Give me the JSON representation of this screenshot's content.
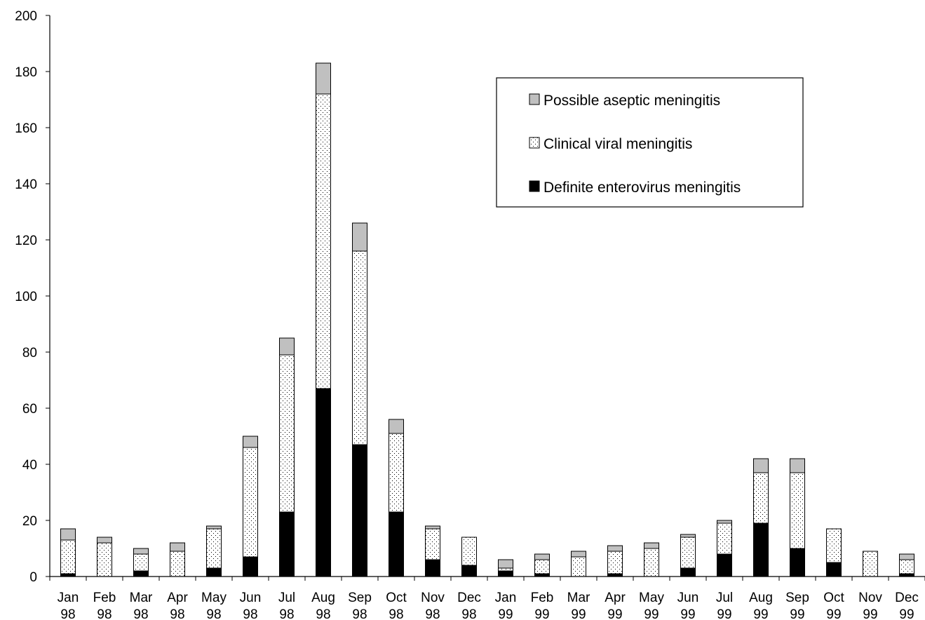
{
  "chart_data": {
    "type": "bar",
    "stacked": true,
    "categories": [
      [
        "Jan",
        "98"
      ],
      [
        "Feb",
        "98"
      ],
      [
        "Mar",
        "98"
      ],
      [
        "Apr",
        "98"
      ],
      [
        "May",
        "98"
      ],
      [
        "Jun",
        "98"
      ],
      [
        "Jul",
        "98"
      ],
      [
        "Aug",
        "98"
      ],
      [
        "Sep",
        "98"
      ],
      [
        "Oct",
        "98"
      ],
      [
        "Nov",
        "98"
      ],
      [
        "Dec",
        "98"
      ],
      [
        "Jan",
        "99"
      ],
      [
        "Feb",
        "99"
      ],
      [
        "Mar",
        "99"
      ],
      [
        "Apr",
        "99"
      ],
      [
        "May",
        "99"
      ],
      [
        "Jun",
        "99"
      ],
      [
        "Jul",
        "99"
      ],
      [
        "Aug",
        "99"
      ],
      [
        "Sep",
        "99"
      ],
      [
        "Oct",
        "99"
      ],
      [
        "Nov",
        "99"
      ],
      [
        "Dec",
        "99"
      ]
    ],
    "series": [
      {
        "name": "Definite enterovirus meningitis",
        "fill": "solid-black",
        "values": [
          1,
          0,
          2,
          0,
          3,
          7,
          23,
          67,
          47,
          23,
          6,
          4,
          2,
          1,
          0,
          1,
          0,
          3,
          8,
          19,
          10,
          5,
          0,
          1
        ]
      },
      {
        "name": "Clinical viral meningitis",
        "fill": "dotted-white",
        "values": [
          12,
          12,
          6,
          9,
          14,
          39,
          56,
          105,
          69,
          28,
          11,
          10,
          1,
          5,
          7,
          8,
          10,
          11,
          11,
          18,
          27,
          12,
          9,
          5
        ]
      },
      {
        "name": "Possible aseptic meningitis",
        "fill": "light-gray",
        "values": [
          4,
          2,
          2,
          3,
          1,
          4,
          6,
          11,
          10,
          5,
          1,
          0,
          3,
          2,
          2,
          2,
          2,
          1,
          1,
          5,
          5,
          0,
          0,
          2
        ]
      }
    ],
    "y_ticks": [
      "0",
      "20",
      "40",
      "60",
      "80",
      "100",
      "120",
      "140",
      "160",
      "180",
      "200"
    ],
    "ylim": [
      0,
      200
    ],
    "title": "",
    "xlabel": "",
    "ylabel": "",
    "grid": false,
    "legend": {
      "placement": "top-right",
      "order": [
        "Possible aseptic meningitis",
        "Clinical viral meningitis",
        "Definite enterovirus meningitis"
      ]
    },
    "colors": {
      "definite": "#000000",
      "clinical": "#ffffff",
      "possible": "#c0c0c0",
      "axis": "#000000"
    }
  }
}
